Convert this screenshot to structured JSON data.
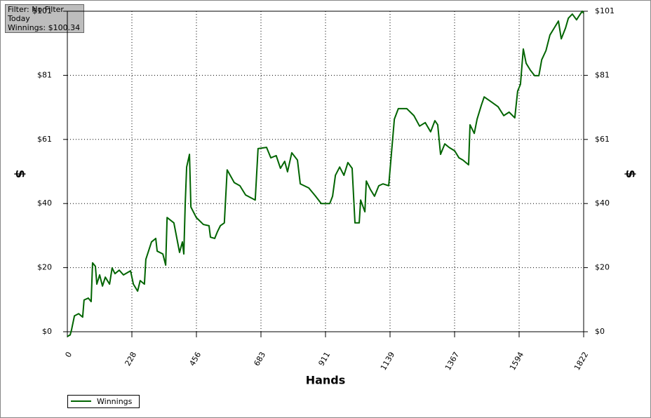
{
  "chart_data": {
    "type": "line",
    "annotations": [
      "Filter: No Filter",
      "Today",
      "Winnings: $100.34"
    ],
    "x_label": "Hands",
    "y_label": "$",
    "y2_label": "$",
    "x": [
      0,
      10,
      15,
      25,
      40,
      54,
      59,
      74,
      84,
      89,
      99,
      104,
      114,
      124,
      134,
      149,
      158,
      168,
      183,
      198,
      223,
      233,
      248,
      257,
      272,
      277,
      297,
      312,
      317,
      337,
      347,
      352,
      376,
      396,
      406,
      411,
      416,
      421,
      431,
      436,
      455,
      480,
      500,
      505,
      520,
      530,
      540,
      554,
      564,
      589,
      609,
      629,
      663,
      673,
      703,
      718,
      737,
      752,
      767,
      777,
      792,
      812,
      822,
      852,
      876,
      896,
      926,
      936,
      946,
      961,
      976,
      990,
      1005,
      1015,
      1030,
      1035,
      1050,
      1055,
      1069,
      1084,
      1099,
      1114,
      1134,
      1154,
      1168,
      1198,
      1223,
      1243,
      1263,
      1282,
      1297,
      1307,
      1317,
      1332,
      1347,
      1367,
      1382,
      1396,
      1416,
      1421,
      1436,
      1446,
      1461,
      1471,
      1495,
      1520,
      1540,
      1559,
      1579,
      1589,
      1599,
      1609,
      1619,
      1634,
      1649,
      1664,
      1674,
      1689,
      1703,
      1718,
      1733,
      1743,
      1758,
      1768,
      1782,
      1797,
      1807,
      1817,
      1822
    ],
    "series": [
      {
        "name": "Winnings",
        "color": "#006400",
        "values": [
          -1.5,
          -1,
          0.7,
          5,
          5.7,
          4.6,
          10,
          10.6,
          9.5,
          21.7,
          20.6,
          15,
          17.9,
          14.4,
          17.2,
          15,
          20.1,
          18.3,
          19.4,
          17.9,
          19.2,
          15,
          12.8,
          16.1,
          15,
          22.8,
          28.3,
          29.4,
          25.4,
          24.5,
          21,
          36,
          34.3,
          25,
          28.3,
          24.5,
          40.4,
          51.9,
          55.9,
          39.3,
          36,
          33.8,
          33.4,
          29.8,
          29.4,
          31.6,
          33.4,
          34.3,
          51,
          47,
          46,
          43.1,
          41.5,
          57.7,
          58.1,
          54.8,
          55.5,
          51.5,
          53.7,
          50.4,
          56.4,
          54.1,
          46.6,
          45.3,
          42.7,
          40.4,
          40.4,
          42.7,
          49.3,
          51.9,
          49.3,
          53.3,
          51.5,
          34.3,
          34.3,
          41.5,
          37.8,
          47.5,
          44.9,
          42.7,
          46,
          46.6,
          46,
          67,
          70.3,
          70.3,
          68.1,
          64.8,
          65.9,
          63,
          66.5,
          65.2,
          55.9,
          59.2,
          58.1,
          57,
          54.8,
          54.1,
          52.6,
          65.2,
          62.5,
          67,
          71.4,
          74,
          72.5,
          70.9,
          68.1,
          69.2,
          67.4,
          75.8,
          78,
          89.1,
          84.6,
          82.4,
          80.7,
          80.7,
          85.7,
          88.6,
          93.5,
          95.7,
          97.9,
          92.3,
          95.7,
          98.8,
          100.1,
          98.3,
          99.7,
          101,
          100.34
        ]
      }
    ],
    "xlim": [
      0,
      1822
    ],
    "xticks": [
      0,
      {
        "value": 227.75,
        "label": "228"
      },
      {
        "value": 455.5,
        "label": "456"
      },
      {
        "value": 683.25,
        "label": "683"
      },
      911,
      {
        "value": 1138.75,
        "label": "1139"
      },
      {
        "value": 1366.5,
        "label": "1367"
      },
      {
        "value": 1594.25,
        "label": "1594"
      },
      1822
    ],
    "ylim": [
      0,
      101
    ],
    "yticks": [
      {
        "value": 0,
        "label": "$0"
      },
      {
        "value": 20.2,
        "label": "$20"
      },
      {
        "value": 40.4,
        "label": "$40"
      },
      {
        "value": 60.6,
        "label": "$61"
      },
      {
        "value": 80.8,
        "label": "$81"
      },
      {
        "value": 101,
        "label": "$101"
      }
    ],
    "y2lim": [
      0,
      101
    ],
    "y2ticks": [
      {
        "value": 0,
        "label": "$0"
      },
      {
        "value": 20.2,
        "label": "$20"
      },
      {
        "value": 40.4,
        "label": "$40"
      },
      {
        "value": 60.6,
        "label": "$61"
      },
      {
        "value": 80.8,
        "label": "$81"
      },
      {
        "value": 101,
        "label": "$101"
      }
    ],
    "grid": true,
    "legend": "bottom-left"
  }
}
